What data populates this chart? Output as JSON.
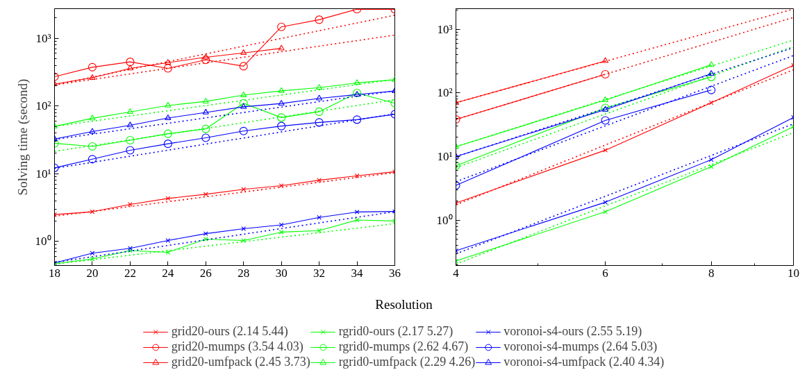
{
  "chart_data": [
    {
      "type": "line",
      "ylabel": "Solving time (second)",
      "xlabel": "Resolution",
      "log": "y",
      "legend": "bottom",
      "x": [
        18,
        20,
        22,
        24,
        26,
        28,
        30,
        32,
        34,
        36
      ],
      "xlim": [
        18,
        36
      ],
      "xticks": [
        18,
        20,
        22,
        24,
        26,
        28,
        30,
        32,
        34,
        36
      ],
      "ylim": [
        0.44,
        2750
      ],
      "yticks": [
        {
          "value": 1,
          "label": "10⁰"
        },
        {
          "value": 10,
          "label": "10¹"
        },
        {
          "value": 100,
          "label": "10²"
        },
        {
          "value": 1000,
          "label": "10³"
        }
      ],
      "series": [
        {
          "name": "grid20-ours (2.14 5.44)",
          "color": "#ff0000",
          "marker": "cross",
          "values": [
            2.49,
            2.74,
            3.52,
            4.31,
            4.97,
            5.88,
            6.65,
            8.02,
            9.31,
            10.7
          ]
        },
        {
          "name": "grid20-mumps (3.54 4.03)",
          "color": "#ff0000",
          "marker": "circle",
          "values": [
            272,
            375,
            450,
            361,
            482,
            388,
            1480,
            1890,
            2700,
            2690
          ]
        },
        {
          "name": "grid20-umfpack (2.45 3.73)",
          "color": "#ff0000",
          "marker": "triangle",
          "values": [
            211,
            262,
            361,
            438,
            526,
            610,
            713,
            null,
            null,
            null
          ]
        },
        {
          "name": "rgrid0-ours (2.17 5.27)",
          "color": "#00ff00",
          "marker": "cross",
          "values": [
            0.47,
            0.55,
            0.73,
            0.69,
            1.08,
            1.03,
            1.37,
            1.44,
            2.07,
            2.0
          ]
        },
        {
          "name": "rgrid0-mumps (2.62 4.67)",
          "color": "#00ff00",
          "marker": "circle",
          "values": [
            28.2,
            25.3,
            31.3,
            39,
            46,
            110,
            67.6,
            82.6,
            156,
            110
          ]
        },
        {
          "name": "rgrid0-umfpack (2.29 4.26)",
          "color": "#00ff00",
          "marker": "triangle",
          "values": [
            50,
            66,
            82,
            102,
            117,
            145,
            168,
            187,
            220,
            245
          ]
        },
        {
          "name": "voronoi-s4-ours (2.55 5.19)",
          "color": "#0000ff",
          "marker": "cross",
          "values": [
            0.48,
            0.67,
            0.79,
            1.03,
            1.3,
            1.54,
            1.75,
            2.26,
            2.72,
            2.77
          ]
        },
        {
          "name": "voronoi-s4-mumps (2.64 5.03)",
          "color": "#0000ff",
          "marker": "circle",
          "values": [
            12.2,
            16.4,
            22.2,
            27.7,
            34,
            42.7,
            50.6,
            57.3,
            63,
            75.7
          ]
        },
        {
          "name": "voronoi-s4-umfpack (2.40 4.34)",
          "color": "#0000ff",
          "marker": "triangle",
          "values": [
            32.6,
            42,
            52,
            66.5,
            80.5,
            97.5,
            109,
            130,
            148,
            167
          ]
        },
        {
          "type": "line",
          "x": [
            18,
            36
          ],
          "color": "#ff0000",
          "marker": "none",
          "line_style": "dotted",
          "values": [
            2.35,
            10.4
          ]
        },
        {
          "type": "line",
          "x": [
            18,
            36
          ],
          "color": "#ff0000",
          "marker": "none",
          "line_style": "dotted",
          "values": [
            206,
            2200
          ]
        },
        {
          "type": "line",
          "x": [
            18,
            36
          ],
          "color": "#ff0000",
          "marker": "none",
          "line_style": "dotted",
          "values": [
            205,
            1120
          ]
        },
        {
          "type": "line",
          "x": [
            18,
            36
          ],
          "color": "#00ff00",
          "marker": "none",
          "line_style": "dotted",
          "values": [
            0.46,
            1.83
          ]
        },
        {
          "type": "line",
          "x": [
            18,
            36
          ],
          "color": "#00ff00",
          "marker": "none",
          "line_style": "dotted",
          "values": [
            21.4,
            124
          ]
        },
        {
          "type": "line",
          "x": [
            18,
            36
          ],
          "color": "#00ff00",
          "marker": "none",
          "line_style": "dotted",
          "values": [
            50,
            248
          ]
        },
        {
          "type": "line",
          "x": [
            18,
            36
          ],
          "color": "#0000ff",
          "marker": "none",
          "line_style": "dotted",
          "values": [
            0.49,
            2.75
          ]
        },
        {
          "type": "line",
          "x": [
            18,
            36
          ],
          "color": "#0000ff",
          "marker": "none",
          "line_style": "dotted",
          "values": [
            12,
            77
          ]
        },
        {
          "type": "line",
          "x": [
            18,
            36
          ],
          "color": "#0000ff",
          "marker": "none",
          "line_style": "dotted",
          "values": [
            32,
            168
          ]
        }
      ]
    },
    {
      "type": "line",
      "log": "xy",
      "x": [
        4,
        6,
        8,
        10
      ],
      "xlim": [
        4,
        10
      ],
      "xticks": [
        4,
        6,
        8,
        10
      ],
      "ylim": [
        0.195,
        2100
      ],
      "yticks": [
        {
          "value": 1,
          "label": "10⁰"
        },
        {
          "value": 10,
          "label": "10¹"
        },
        {
          "value": 100,
          "label": "10²"
        },
        {
          "value": 1000,
          "label": "10³"
        }
      ],
      "series": [
        {
          "color": "#ff0000",
          "marker": "cross",
          "values": [
            1.87,
            12.6,
            70,
            271
          ]
        },
        {
          "color": "#ff0000",
          "marker": "circle",
          "values": [
            38.3,
            196,
            null,
            null
          ]
        },
        {
          "color": "#ff0000",
          "marker": "triangle",
          "values": [
            70,
            318,
            null,
            null
          ]
        },
        {
          "color": "#00ff00",
          "marker": "cross",
          "values": [
            0.229,
            1.36,
            6.95,
            29.5
          ]
        },
        {
          "color": "#00ff00",
          "marker": "circle",
          "values": [
            7.2,
            58,
            178,
            null
          ]
        },
        {
          "color": "#00ff00",
          "marker": "triangle",
          "values": [
            14.3,
            77,
            276,
            null
          ]
        },
        {
          "color": "#0000ff",
          "marker": "cross",
          "values": [
            0.333,
            1.92,
            8.94,
            41.2
          ]
        },
        {
          "color": "#0000ff",
          "marker": "circle",
          "values": [
            3.53,
            36.9,
            111,
            null
          ]
        },
        {
          "color": "#0000ff",
          "marker": "triangle",
          "values": [
            10,
            54.6,
            200,
            null
          ]
        },
        {
          "type": "line",
          "x": [
            4,
            10
          ],
          "color": "#ff0000",
          "marker": "none",
          "line_style": "dotted",
          "values": [
            1.75,
            231
          ]
        },
        {
          "type": "line",
          "x": [
            4,
            10
          ],
          "color": "#ff0000",
          "marker": "none",
          "line_style": "dotted",
          "values": [
            38.3,
            1530
          ]
        },
        {
          "type": "line",
          "x": [
            4,
            10
          ],
          "color": "#ff0000",
          "marker": "none",
          "line_style": "dotted",
          "values": [
            70,
            2070
          ]
        },
        {
          "type": "line",
          "x": [
            4,
            10
          ],
          "color": "#00ff00",
          "marker": "none",
          "line_style": "dotted",
          "values": [
            0.205,
            23.8
          ]
        },
        {
          "type": "line",
          "x": [
            4,
            10
          ],
          "color": "#00ff00",
          "marker": "none",
          "line_style": "dotted",
          "values": [
            6.7,
            535
          ]
        },
        {
          "type": "line",
          "x": [
            4,
            10
          ],
          "color": "#00ff00",
          "marker": "none",
          "line_style": "dotted",
          "values": [
            14.3,
            676
          ]
        },
        {
          "type": "line",
          "x": [
            4,
            10
          ],
          "color": "#0000ff",
          "marker": "none",
          "line_style": "dotted",
          "values": [
            0.298,
            32.7
          ]
        },
        {
          "type": "line",
          "x": [
            4,
            10
          ],
          "color": "#0000ff",
          "marker": "none",
          "line_style": "dotted",
          "values": [
            4.04,
            386
          ]
        },
        {
          "type": "line",
          "x": [
            4,
            10
          ],
          "color": "#0000ff",
          "marker": "none",
          "line_style": "dotted",
          "values": [
            10,
            512
          ]
        }
      ]
    }
  ]
}
